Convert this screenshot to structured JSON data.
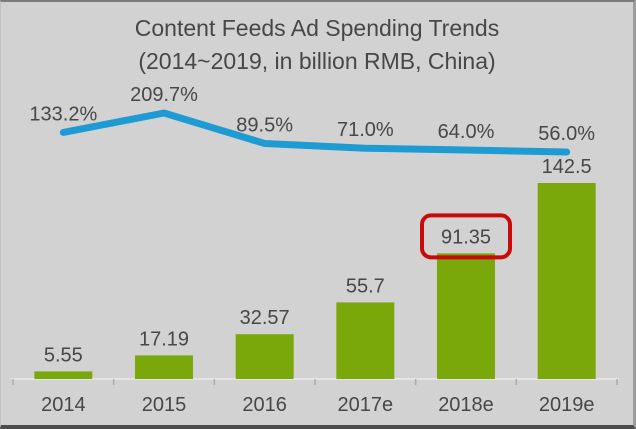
{
  "title": {
    "line1": "Content Feeds Ad Spending Trends",
    "line2": "(2014~2019, in billion RMB, China)"
  },
  "chart_data": {
    "type": "bar",
    "subtype": "bar-line-combo",
    "title": "Content Feeds Ad Spending Trends (2014~2019, in billion RMB, China)",
    "categories": [
      "2014",
      "2015",
      "2016",
      "2017e",
      "2018e",
      "2019e"
    ],
    "series": [
      {
        "name": "content-feeds-ad-spending",
        "type": "bar",
        "unit": "billion RMB",
        "values": [
          5.55,
          17.19,
          32.57,
          55.7,
          91.35,
          142.5
        ],
        "labels": [
          "5.55",
          "17.19",
          "32.57",
          "55.7",
          "91.35",
          "142.5"
        ],
        "color": "#7aa80a"
      },
      {
        "name": "yoy-growth-rate",
        "type": "line",
        "unit": "%",
        "values": [
          133.2,
          209.7,
          89.5,
          71.0,
          64.0,
          56.0
        ],
        "labels": [
          "133.2%",
          "209.7%",
          "89.5%",
          "71.0%",
          "64.0%",
          "56.0%"
        ],
        "color": "#1e9bd3"
      }
    ],
    "highlight": {
      "category_index": 4,
      "category": "2018e",
      "label": "91.35",
      "box_color": "#c80a0a"
    },
    "xlabel": "",
    "ylabel": "",
    "grid": false,
    "legend": false,
    "value_axis_visible": false
  },
  "colors": {
    "background": "#d2d2d2",
    "text": "#474747",
    "bar": "#7aa80a",
    "line": "#1e9bd3",
    "highlight_box": "#c80a0a",
    "axis_line": "#e4e4e4",
    "tick": "#ababab"
  }
}
